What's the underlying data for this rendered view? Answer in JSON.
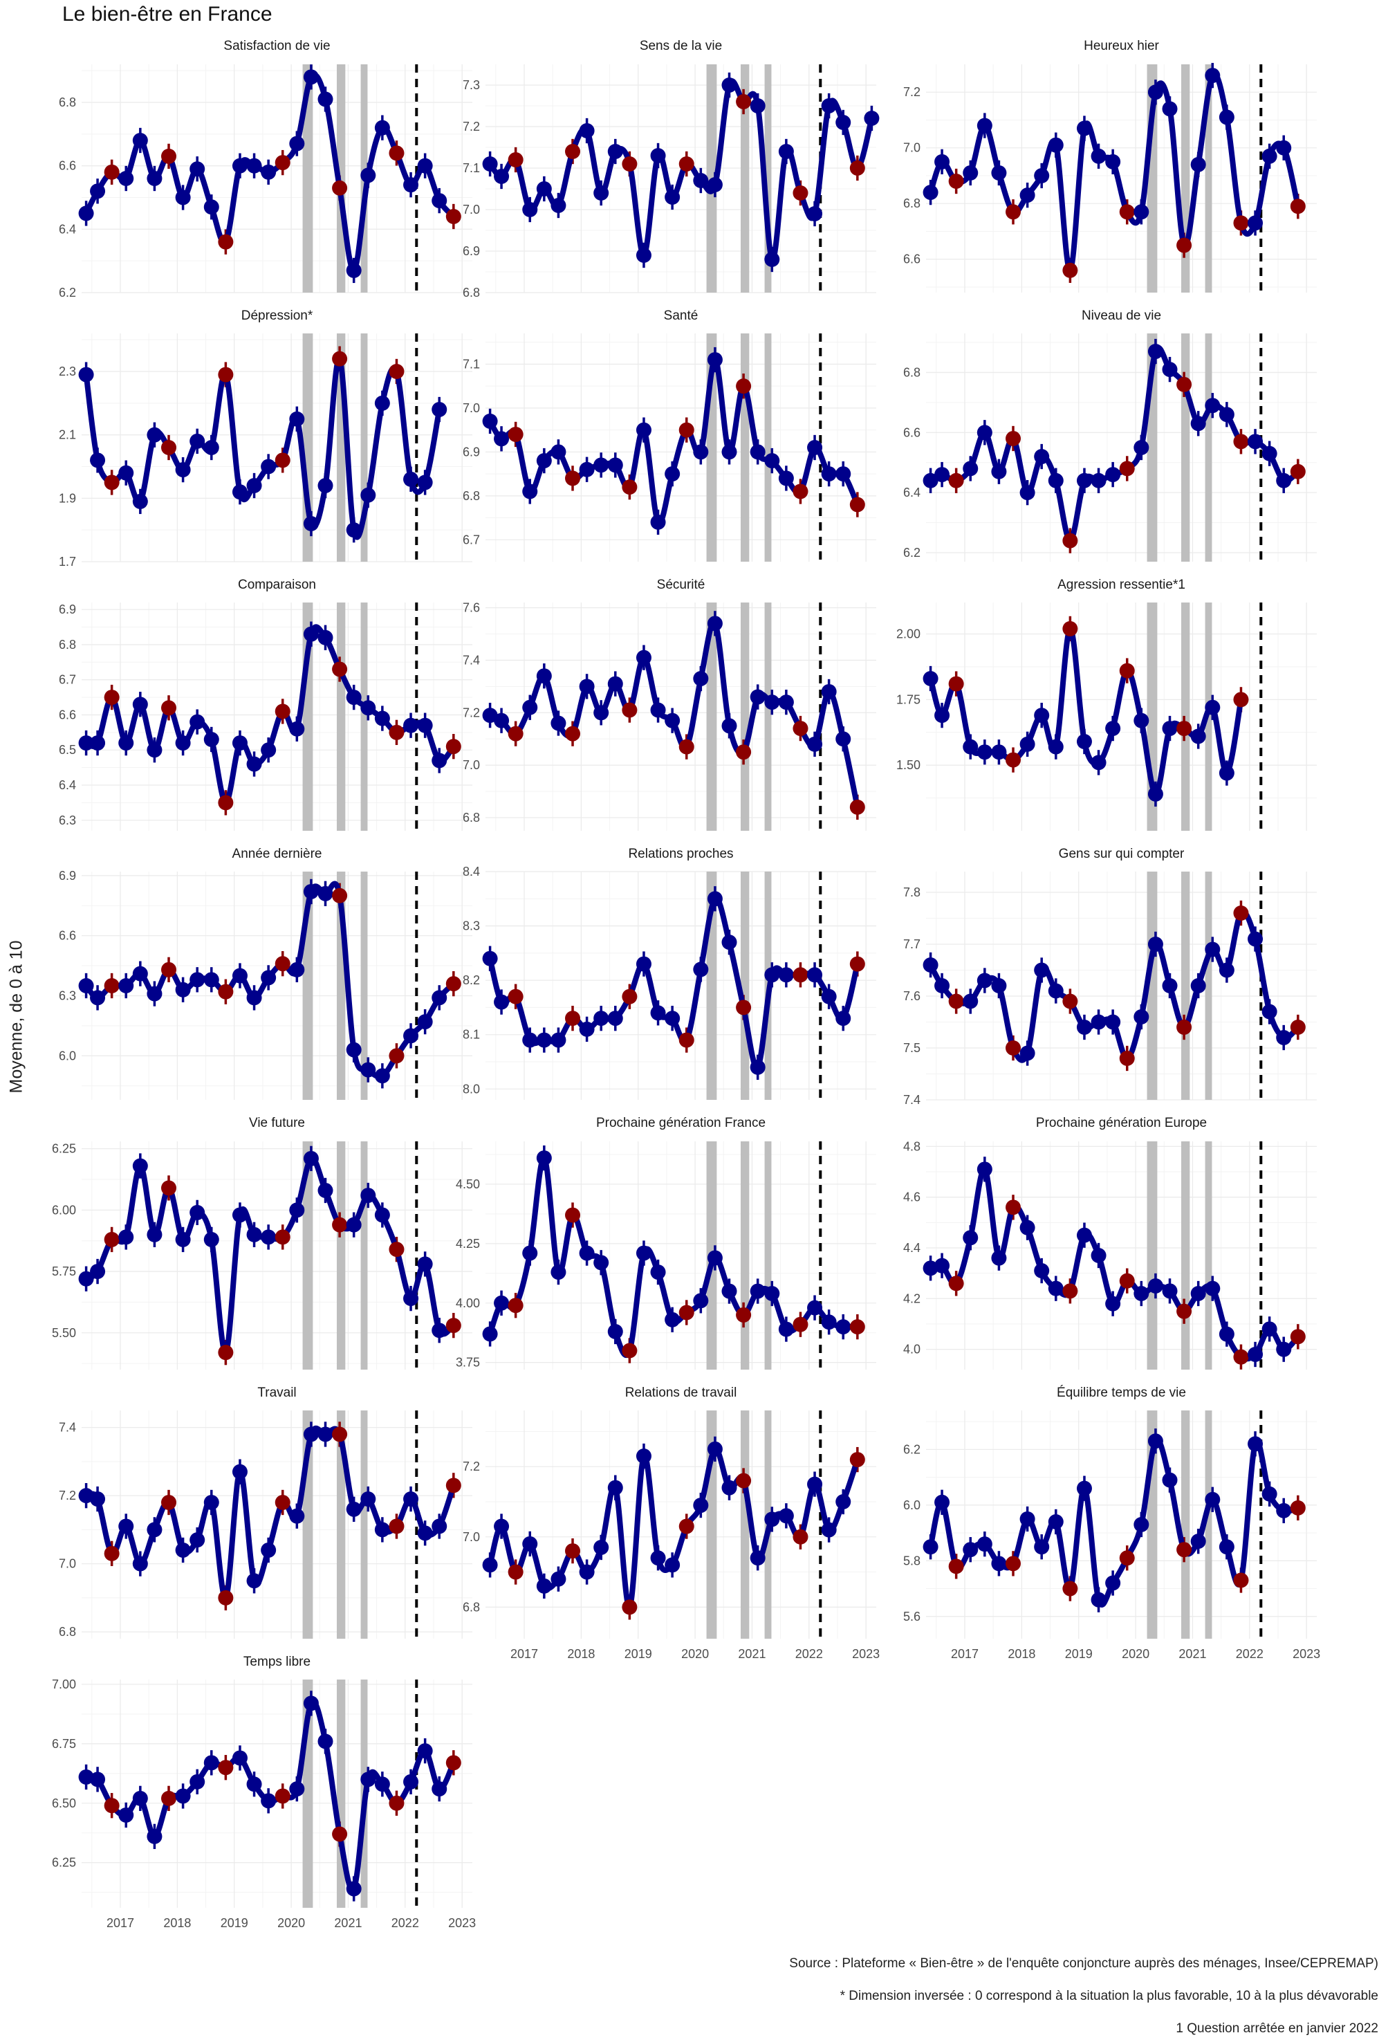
{
  "title": "Le bien-être en France",
  "notes": {
    "source": "Source : Plateforme « Bien-être » de l'enquête conjoncture auprès des ménages, Insee/CEPREMAP)",
    "inverted": "* Dimension inversée : 0 correspond à la situation la plus favorable, 10 à la plus dévavorable",
    "stopped": "1 Question arrêtée en janvier 2022"
  },
  "colors": {
    "line": "#00008b",
    "blue_point": "#00008b",
    "red_point": "#8b0000",
    "shade": "#bebebe",
    "dashed": "#000000"
  },
  "chart_data": {
    "type": "line",
    "ylabel": "Moyenne, de 0 à 10",
    "x_range": [
      2016.32,
      2023.18
    ],
    "x_ticks": [
      "2017",
      "2018",
      "2019",
      "2020",
      "2021",
      "2022",
      "2023"
    ],
    "x": [
      2016.4,
      2016.6,
      2016.85,
      2017.1,
      2017.35,
      2017.6,
      2017.85,
      2018.1,
      2018.35,
      2018.6,
      2018.85,
      2019.1,
      2019.35,
      2019.6,
      2019.85,
      2020.1,
      2020.35,
      2020.6,
      2020.85,
      2021.1,
      2021.35,
      2021.6,
      2021.85,
      2022.1,
      2022.35,
      2022.6,
      2022.85,
      2023.1
    ],
    "red_points": [
      2,
      6,
      10,
      14,
      18,
      22,
      26
    ],
    "shaded_periods": [
      [
        2020.2,
        2020.38
      ],
      [
        2020.8,
        2020.95
      ],
      [
        2021.22,
        2021.34
      ]
    ],
    "dashed_line_x": 2022.2,
    "panels": [
      {
        "title": "Satisfaction de vie",
        "ylim": [
          6.2,
          6.92
        ],
        "yticks": [
          6.2,
          6.4,
          6.6,
          6.8
        ],
        "decimals": 1,
        "values": [
          6.45,
          6.52,
          6.58,
          6.56,
          6.68,
          6.56,
          6.63,
          6.5,
          6.59,
          6.47,
          6.36,
          6.6,
          6.6,
          6.58,
          6.61,
          6.67,
          6.88,
          6.81,
          6.53,
          6.27,
          6.57,
          6.72,
          6.64,
          6.54,
          6.6,
          6.49,
          6.44,
          null
        ]
      },
      {
        "title": "Sens de la vie",
        "ylim": [
          6.8,
          7.35
        ],
        "yticks": [
          6.8,
          6.9,
          7.0,
          7.1,
          7.2,
          7.3
        ],
        "decimals": 1,
        "values": [
          7.11,
          7.08,
          7.12,
          7.0,
          7.05,
          7.01,
          7.14,
          7.19,
          7.04,
          7.14,
          7.11,
          6.89,
          7.13,
          7.03,
          7.11,
          7.07,
          7.06,
          7.3,
          7.26,
          7.25,
          6.88,
          7.14,
          7.04,
          6.99,
          7.25,
          7.21,
          7.1,
          7.22
        ]
      },
      {
        "title": "Heureux hier",
        "ylim": [
          6.48,
          7.3
        ],
        "yticks": [
          6.6,
          6.8,
          7.0,
          7.2
        ],
        "decimals": 1,
        "values": [
          6.84,
          6.95,
          6.88,
          6.91,
          7.08,
          6.91,
          6.77,
          6.83,
          6.9,
          7.01,
          6.56,
          7.07,
          6.97,
          6.95,
          6.77,
          6.77,
          7.2,
          7.14,
          6.65,
          6.94,
          7.26,
          7.11,
          6.73,
          6.73,
          6.97,
          7.0,
          6.79,
          null
        ]
      },
      {
        "title": "Dépression*",
        "ylim": [
          1.7,
          2.42
        ],
        "yticks": [
          1.7,
          1.9,
          2.1,
          2.3
        ],
        "decimals": 1,
        "values": [
          2.29,
          2.02,
          1.95,
          1.98,
          1.89,
          2.1,
          2.06,
          1.99,
          2.08,
          2.06,
          2.29,
          1.92,
          1.94,
          2.0,
          2.02,
          2.15,
          1.82,
          1.94,
          2.34,
          1.8,
          1.91,
          2.2,
          2.3,
          1.96,
          1.95,
          2.18,
          null,
          null
        ]
      },
      {
        "title": "Santé",
        "ylim": [
          6.65,
          7.17
        ],
        "yticks": [
          6.7,
          6.8,
          6.9,
          7.0,
          7.1
        ],
        "decimals": 1,
        "values": [
          6.97,
          6.93,
          6.94,
          6.81,
          6.88,
          6.9,
          6.84,
          6.86,
          6.87,
          6.87,
          6.82,
          6.95,
          6.74,
          6.85,
          6.95,
          6.9,
          7.11,
          6.9,
          7.05,
          6.9,
          6.88,
          6.84,
          6.81,
          6.91,
          6.85,
          6.85,
          6.78,
          null
        ]
      },
      {
        "title": "Niveau de vie",
        "ylim": [
          6.17,
          6.93
        ],
        "yticks": [
          6.2,
          6.4,
          6.6,
          6.8
        ],
        "decimals": 1,
        "values": [
          6.44,
          6.46,
          6.44,
          6.48,
          6.6,
          6.47,
          6.58,
          6.4,
          6.52,
          6.44,
          6.24,
          6.44,
          6.44,
          6.46,
          6.48,
          6.55,
          6.87,
          6.81,
          6.76,
          6.63,
          6.69,
          6.66,
          6.57,
          6.57,
          6.53,
          6.44,
          6.47,
          null
        ]
      },
      {
        "title": "Comparaison",
        "ylim": [
          6.27,
          6.92
        ],
        "yticks": [
          6.3,
          6.4,
          6.5,
          6.6,
          6.7,
          6.8,
          6.9
        ],
        "decimals": 1,
        "values": [
          6.52,
          6.52,
          6.65,
          6.52,
          6.63,
          6.5,
          6.62,
          6.52,
          6.58,
          6.53,
          6.35,
          6.52,
          6.46,
          6.5,
          6.61,
          6.56,
          6.83,
          6.82,
          6.73,
          6.65,
          6.62,
          6.59,
          6.55,
          6.57,
          6.57,
          6.47,
          6.51,
          null
        ]
      },
      {
        "title": "Sécurité",
        "ylim": [
          6.75,
          7.62
        ],
        "yticks": [
          6.8,
          7.0,
          7.2,
          7.4,
          7.6
        ],
        "decimals": 1,
        "values": [
          7.19,
          7.17,
          7.12,
          7.22,
          7.34,
          7.16,
          7.12,
          7.3,
          7.2,
          7.31,
          7.21,
          7.41,
          7.21,
          7.17,
          7.07,
          7.33,
          7.54,
          7.15,
          7.05,
          7.26,
          7.24,
          7.24,
          7.14,
          7.08,
          7.28,
          7.1,
          6.84,
          null
        ]
      },
      {
        "title": "Agression ressentie*1",
        "ylim": [
          1.25,
          2.12
        ],
        "yticks": [
          1.5,
          1.75,
          2.0
        ],
        "decimals": 2,
        "values": [
          1.83,
          1.69,
          1.81,
          1.57,
          1.55,
          1.55,
          1.52,
          1.58,
          1.69,
          1.57,
          2.02,
          1.59,
          1.51,
          1.64,
          1.86,
          1.67,
          1.39,
          1.64,
          1.64,
          1.61,
          1.72,
          1.47,
          1.75,
          null,
          null,
          null,
          null,
          null
        ]
      },
      {
        "title": "Année dernière",
        "ylim": [
          5.78,
          6.92
        ],
        "yticks": [
          6.0,
          6.3,
          6.6,
          6.9
        ],
        "decimals": 1,
        "values": [
          6.35,
          6.29,
          6.35,
          6.35,
          6.41,
          6.31,
          6.43,
          6.33,
          6.38,
          6.38,
          6.32,
          6.4,
          6.29,
          6.39,
          6.46,
          6.43,
          6.82,
          6.81,
          6.8,
          6.03,
          5.93,
          5.9,
          6.0,
          6.1,
          6.17,
          6.29,
          6.36,
          null
        ]
      },
      {
        "title": "Relations proches",
        "ylim": [
          7.98,
          8.4
        ],
        "yticks": [
          8.0,
          8.1,
          8.2,
          8.3,
          8.4
        ],
        "decimals": 1,
        "values": [
          8.24,
          8.16,
          8.17,
          8.09,
          8.09,
          8.09,
          8.13,
          8.11,
          8.13,
          8.13,
          8.17,
          8.23,
          8.14,
          8.13,
          8.09,
          8.22,
          8.35,
          8.27,
          8.15,
          8.04,
          8.21,
          8.21,
          8.21,
          8.21,
          8.17,
          8.13,
          8.23,
          null
        ]
      },
      {
        "title": "Gens sur qui compter",
        "ylim": [
          7.4,
          7.84
        ],
        "yticks": [
          7.4,
          7.5,
          7.6,
          7.7,
          7.8
        ],
        "decimals": 1,
        "values": [
          7.66,
          7.62,
          7.59,
          7.59,
          7.63,
          7.62,
          7.5,
          7.49,
          7.65,
          7.61,
          7.59,
          7.54,
          7.55,
          7.55,
          7.48,
          7.56,
          7.7,
          7.62,
          7.54,
          7.62,
          7.69,
          7.65,
          7.76,
          7.71,
          7.57,
          7.52,
          7.54,
          null
        ]
      },
      {
        "title": "Vie future",
        "ylim": [
          5.35,
          6.28
        ],
        "yticks": [
          5.5,
          5.75,
          6.0,
          6.25
        ],
        "decimals": 2,
        "values": [
          5.72,
          5.75,
          5.88,
          5.89,
          6.18,
          5.9,
          6.09,
          5.88,
          5.99,
          5.88,
          5.42,
          5.98,
          5.9,
          5.89,
          5.89,
          6.0,
          6.21,
          6.08,
          5.94,
          5.94,
          6.06,
          5.98,
          5.84,
          5.64,
          5.78,
          5.51,
          5.53,
          null
        ]
      },
      {
        "title": "Prochaine génération France",
        "ylim": [
          3.72,
          4.68
        ],
        "yticks": [
          3.75,
          4.0,
          4.25,
          4.5
        ],
        "decimals": 2,
        "values": [
          3.87,
          4.0,
          3.99,
          4.21,
          4.61,
          4.13,
          4.37,
          4.21,
          4.17,
          3.88,
          3.8,
          4.21,
          4.13,
          3.93,
          3.96,
          4.01,
          4.19,
          4.05,
          3.95,
          4.05,
          4.04,
          3.89,
          3.91,
          3.98,
          3.92,
          3.9,
          3.9,
          null
        ]
      },
      {
        "title": "Prochaine génération Europe",
        "ylim": [
          3.92,
          4.82
        ],
        "yticks": [
          4.0,
          4.2,
          4.4,
          4.6,
          4.8
        ],
        "decimals": 1,
        "values": [
          4.32,
          4.33,
          4.26,
          4.44,
          4.71,
          4.36,
          4.56,
          4.48,
          4.31,
          4.24,
          4.23,
          4.45,
          4.37,
          4.18,
          4.27,
          4.22,
          4.25,
          4.23,
          4.15,
          4.22,
          4.24,
          4.06,
          3.97,
          3.98,
          4.08,
          4.0,
          4.05,
          null
        ]
      },
      {
        "title": "Travail",
        "ylim": [
          6.78,
          7.45
        ],
        "yticks": [
          6.8,
          7.0,
          7.2,
          7.4
        ],
        "decimals": 1,
        "values": [
          7.2,
          7.19,
          7.03,
          7.11,
          7.0,
          7.1,
          7.18,
          7.04,
          7.07,
          7.18,
          6.9,
          7.27,
          6.95,
          7.04,
          7.18,
          7.14,
          7.38,
          7.38,
          7.38,
          7.16,
          7.19,
          7.1,
          7.11,
          7.19,
          7.09,
          7.11,
          7.23,
          null
        ]
      },
      {
        "title": "Relations de travail",
        "ylim": [
          6.71,
          7.36
        ],
        "yticks": [
          6.8,
          7.0,
          7.2
        ],
        "decimals": 1,
        "values": [
          6.92,
          7.03,
          6.9,
          6.98,
          6.86,
          6.88,
          6.96,
          6.9,
          6.97,
          7.14,
          6.8,
          7.23,
          6.94,
          6.92,
          7.03,
          7.09,
          7.25,
          7.14,
          7.16,
          6.94,
          7.05,
          7.06,
          7.0,
          7.15,
          7.02,
          7.1,
          7.22,
          null
        ]
      },
      {
        "title": "Équilibre temps de vie",
        "ylim": [
          5.52,
          6.34
        ],
        "yticks": [
          5.6,
          5.8,
          6.0,
          6.2
        ],
        "decimals": 1,
        "values": [
          5.85,
          6.01,
          5.78,
          5.84,
          5.86,
          5.79,
          5.79,
          5.95,
          5.85,
          5.94,
          5.7,
          6.06,
          5.66,
          5.72,
          5.81,
          5.93,
          6.23,
          6.09,
          5.84,
          5.87,
          6.02,
          5.85,
          5.73,
          6.22,
          6.04,
          5.98,
          5.99,
          null
        ]
      },
      {
        "title": "Temps libre",
        "ylim": [
          6.06,
          7.02
        ],
        "yticks": [
          6.25,
          6.5,
          6.75,
          7.0
        ],
        "decimals": 2,
        "values": [
          6.61,
          6.6,
          6.49,
          6.45,
          6.52,
          6.36,
          6.52,
          6.53,
          6.59,
          6.67,
          6.65,
          6.69,
          6.58,
          6.51,
          6.53,
          6.56,
          6.92,
          6.76,
          6.37,
          6.14,
          6.6,
          6.58,
          6.5,
          6.59,
          6.72,
          6.56,
          6.67,
          null
        ]
      }
    ]
  }
}
